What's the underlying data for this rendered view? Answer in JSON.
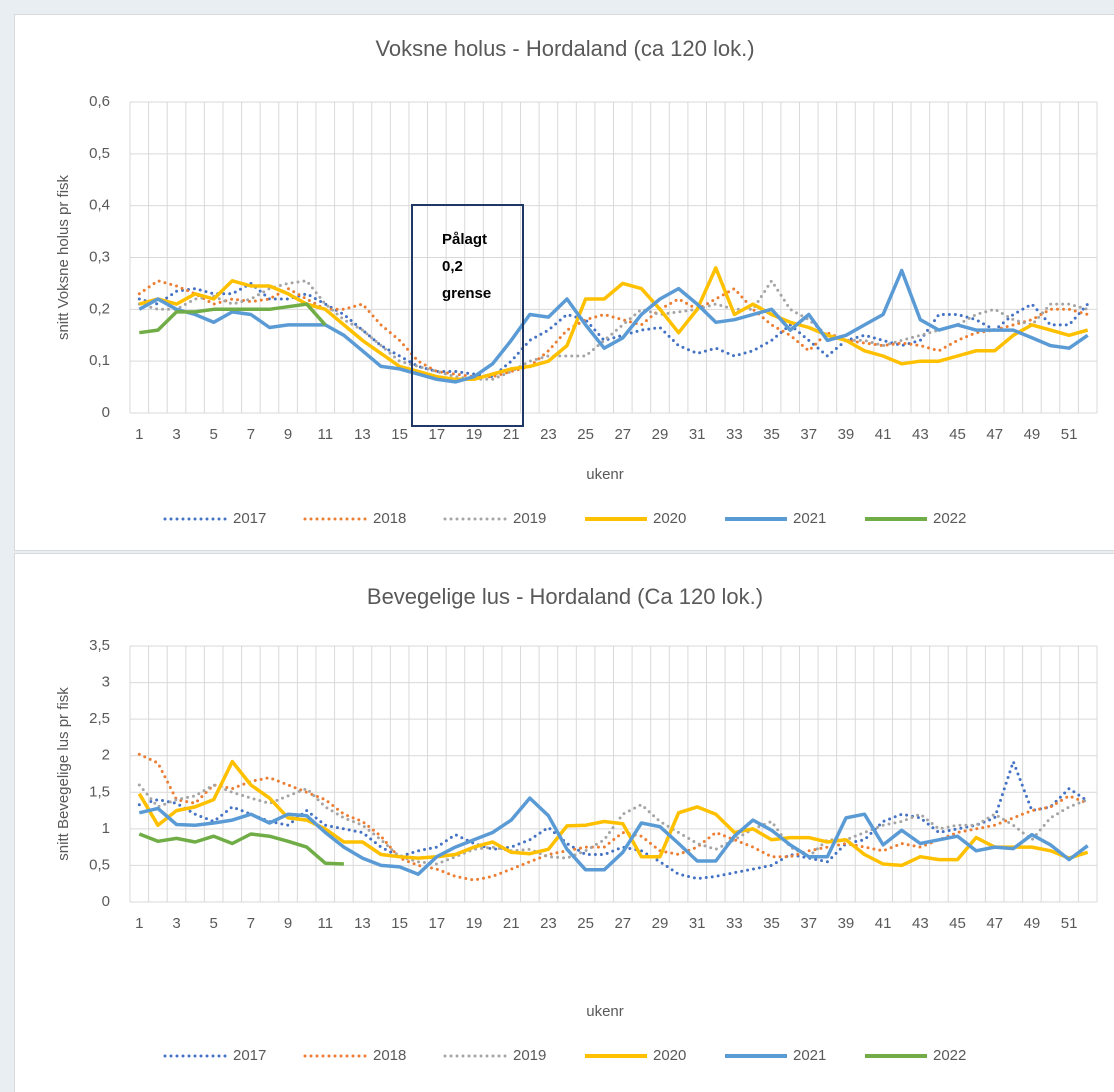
{
  "chart_data": [
    {
      "type": "line",
      "title": "Voksne holus - Hordaland (ca 120 lok.)",
      "x_label": "ukenr",
      "y_label": "snitt Voksne holus pr fisk",
      "categories": [
        1,
        null,
        3,
        null,
        5,
        null,
        7,
        null,
        9,
        null,
        11,
        null,
        13,
        null,
        15,
        null,
        17,
        null,
        19,
        null,
        21,
        null,
        23,
        null,
        25,
        null,
        27,
        null,
        29,
        null,
        31,
        null,
        33,
        null,
        35,
        null,
        37,
        null,
        39,
        null,
        41,
        null,
        43,
        null,
        45,
        null,
        47,
        null,
        49,
        null,
        51,
        null
      ],
      "ylim": [
        0,
        0.6
      ],
      "yticks": [
        0,
        {
          "value": 0.1,
          "label": "0,1"
        },
        {
          "value": 0.2,
          "label": "0,2"
        },
        {
          "value": 0.3,
          "label": "0,3"
        },
        {
          "value": 0.4,
          "label": "0,4"
        },
        {
          "value": 0.5,
          "label": "0,5"
        },
        {
          "value": 0.6,
          "label": "0,6"
        }
      ],
      "grid": true,
      "legend": "bottom",
      "annotation": [
        "Pålagt",
        "0,2",
        "grense"
      ],
      "series": [
        {
          "name": "2017",
          "color": "#4472c4",
          "style": "dotted",
          "values": [
            0.22,
            0.21,
            0.235,
            0.24,
            0.23,
            0.23,
            0.25,
            0.22,
            0.22,
            0.23,
            0.21,
            0.19,
            0.16,
            0.13,
            0.11,
            0.09,
            0.08,
            0.08,
            0.075,
            0.07,
            0.1,
            0.14,
            0.16,
            0.19,
            0.18,
            0.14,
            0.15,
            0.16,
            0.165,
            0.13,
            0.115,
            0.125,
            0.11,
            0.12,
            0.14,
            0.17,
            0.14,
            0.11,
            0.14,
            0.15,
            0.14,
            0.13,
            0.14,
            0.19,
            0.19,
            0.18,
            0.16,
            0.19,
            0.21,
            0.17,
            0.17,
            0.21
          ]
        },
        {
          "name": "2018",
          "color": "#ed7d31",
          "style": "dotted",
          "values": [
            0.23,
            0.255,
            0.245,
            0.23,
            0.21,
            0.22,
            0.215,
            0.22,
            0.24,
            0.22,
            0.2,
            0.2,
            0.21,
            0.17,
            0.14,
            0.1,
            0.08,
            0.075,
            0.07,
            0.07,
            0.08,
            0.09,
            0.12,
            0.16,
            0.18,
            0.19,
            0.18,
            0.17,
            0.2,
            0.22,
            0.2,
            0.22,
            0.24,
            0.2,
            0.17,
            0.15,
            0.12,
            0.155,
            0.14,
            0.135,
            0.13,
            0.135,
            0.13,
            0.12,
            0.14,
            0.155,
            0.16,
            0.17,
            0.18,
            0.2,
            0.2,
            0.19
          ]
        },
        {
          "name": "2019",
          "color": "#a5a5a5",
          "style": "dotted",
          "values": [
            0.21,
            0.2,
            0.2,
            0.22,
            0.225,
            0.21,
            0.22,
            0.24,
            0.25,
            0.255,
            0.21,
            0.18,
            0.16,
            0.13,
            0.1,
            0.09,
            0.08,
            0.07,
            0.065,
            0.065,
            0.08,
            0.1,
            0.11,
            0.11,
            0.11,
            0.14,
            0.17,
            0.2,
            0.19,
            0.195,
            0.2,
            0.21,
            0.2,
            0.2,
            0.255,
            0.2,
            0.18,
            0.15,
            0.14,
            0.14,
            0.13,
            0.14,
            0.15,
            0.16,
            0.17,
            0.19,
            0.2,
            0.18,
            0.17,
            0.21,
            0.21,
            0.2
          ]
        },
        {
          "name": "2020",
          "color": "#ffc000",
          "style": "solid",
          "values": [
            0.21,
            0.22,
            0.21,
            0.23,
            0.22,
            0.255,
            0.245,
            0.245,
            0.23,
            0.21,
            0.2,
            0.17,
            0.14,
            0.115,
            0.09,
            0.08,
            0.07,
            0.065,
            0.065,
            0.075,
            0.085,
            0.09,
            0.1,
            0.13,
            0.22,
            0.22,
            0.25,
            0.24,
            0.2,
            0.155,
            0.2,
            0.28,
            0.19,
            0.21,
            0.19,
            0.175,
            0.165,
            0.15,
            0.14,
            0.12,
            0.11,
            0.095,
            0.1,
            0.1,
            0.11,
            0.12,
            0.12,
            0.15,
            0.17,
            0.16,
            0.15,
            0.16
          ]
        },
        {
          "name": "2021",
          "color": "#5b9bd5",
          "style": "solid",
          "values": [
            0.2,
            0.22,
            0.2,
            0.19,
            0.175,
            0.195,
            0.19,
            0.165,
            0.17,
            0.17,
            0.17,
            0.15,
            0.12,
            0.09,
            0.085,
            0.075,
            0.065,
            0.06,
            0.07,
            0.095,
            0.14,
            0.19,
            0.185,
            0.22,
            0.17,
            0.125,
            0.145,
            0.19,
            0.22,
            0.24,
            0.21,
            0.175,
            0.18,
            0.19,
            0.2,
            0.16,
            0.19,
            0.14,
            0.15,
            0.17,
            0.19,
            0.275,
            0.18,
            0.16,
            0.17,
            0.16,
            0.16,
            0.16,
            0.145,
            0.13,
            0.125,
            0.15
          ]
        },
        {
          "name": "2022",
          "color": "#70ad47",
          "style": "solid",
          "values": [
            0.155,
            0.16,
            0.195,
            0.195,
            0.2,
            0.2,
            0.2,
            0.2,
            0.205,
            0.21,
            0.17,
            null,
            null,
            null,
            null,
            null,
            null,
            null,
            null,
            null,
            null,
            null,
            null,
            null,
            null,
            null,
            null,
            null,
            null,
            null,
            null,
            null,
            null,
            null,
            null,
            null,
            null,
            null,
            null,
            null,
            null,
            null,
            null,
            null,
            null,
            null,
            null,
            null,
            null,
            null,
            null,
            null
          ]
        }
      ]
    },
    {
      "type": "line",
      "title": "Bevegelige lus - Hordaland (Ca 120 lok.)",
      "x_label": "ukenr",
      "y_label": "snitt Bevegelige lus pr fisk",
      "categories": [
        1,
        null,
        3,
        null,
        5,
        null,
        7,
        null,
        9,
        null,
        11,
        null,
        13,
        null,
        15,
        null,
        17,
        null,
        19,
        null,
        21,
        null,
        23,
        null,
        25,
        null,
        27,
        null,
        29,
        null,
        31,
        null,
        33,
        null,
        35,
        null,
        37,
        null,
        39,
        null,
        41,
        null,
        43,
        null,
        45,
        null,
        47,
        null,
        49,
        null,
        51,
        null
      ],
      "ylim": [
        0,
        3.5
      ],
      "yticks": [
        0,
        {
          "value": 0.5,
          "label": "0,5"
        },
        1,
        {
          "value": 1.5,
          "label": "1,5"
        },
        2,
        {
          "value": 2.5,
          "label": "2,5"
        },
        3,
        {
          "value": 3.5,
          "label": "3,5"
        }
      ],
      "grid": true,
      "legend": "bottom",
      "series": [
        {
          "name": "2017",
          "color": "#4472c4",
          "style": "dotted",
          "values": [
            1.33,
            1.4,
            1.35,
            1.2,
            1.1,
            1.3,
            1.2,
            1.1,
            1.05,
            1.25,
            1.05,
            1.0,
            0.95,
            0.75,
            0.62,
            0.7,
            0.75,
            0.92,
            0.8,
            0.72,
            0.75,
            0.85,
            1.02,
            0.8,
            0.65,
            0.65,
            0.75,
            0.7,
            0.55,
            0.38,
            0.32,
            0.35,
            0.4,
            0.45,
            0.5,
            0.65,
            0.6,
            0.55,
            0.8,
            0.85,
            1.1,
            1.2,
            1.15,
            0.95,
            1.0,
            1.05,
            1.15,
            1.92,
            1.25,
            1.3,
            1.55,
            1.38
          ]
        },
        {
          "name": "2018",
          "color": "#ed7d31",
          "style": "dotted",
          "values": [
            2.02,
            1.9,
            1.4,
            1.35,
            1.6,
            1.55,
            1.65,
            1.7,
            1.6,
            1.5,
            1.4,
            1.2,
            1.1,
            0.9,
            0.6,
            0.5,
            0.45,
            0.35,
            0.3,
            0.35,
            0.45,
            0.55,
            0.65,
            0.7,
            0.75,
            0.75,
            0.95,
            0.9,
            0.7,
            0.65,
            0.75,
            0.95,
            0.85,
            0.75,
            0.62,
            0.62,
            0.7,
            0.75,
            0.8,
            0.75,
            0.7,
            0.8,
            0.75,
            0.85,
            0.95,
            1.0,
            1.05,
            1.15,
            1.25,
            1.3,
            1.45,
            1.35
          ]
        },
        {
          "name": "2019",
          "color": "#a5a5a5",
          "style": "dotted",
          "values": [
            1.6,
            1.3,
            1.4,
            1.45,
            1.6,
            1.5,
            1.42,
            1.35,
            1.45,
            1.55,
            1.3,
            1.15,
            1.05,
            0.85,
            0.62,
            0.55,
            0.52,
            0.62,
            0.72,
            0.75,
            0.7,
            0.72,
            0.62,
            0.6,
            0.7,
            0.85,
            1.2,
            1.33,
            1.1,
            0.95,
            0.8,
            0.72,
            0.85,
            1.0,
            1.1,
            0.75,
            0.62,
            0.85,
            0.85,
            0.95,
            1.05,
            1.1,
            1.2,
            1.0,
            1.05,
            1.05,
            1.2,
            1.05,
            0.85,
            1.15,
            1.3,
            1.4
          ]
        },
        {
          "name": "2020",
          "color": "#ffc000",
          "style": "solid",
          "values": [
            1.48,
            1.05,
            1.25,
            1.3,
            1.4,
            1.92,
            1.6,
            1.42,
            1.15,
            1.12,
            1.0,
            0.82,
            0.82,
            0.65,
            0.62,
            0.6,
            0.62,
            0.65,
            0.75,
            0.82,
            0.68,
            0.66,
            0.72,
            1.04,
            1.05,
            1.1,
            1.07,
            0.62,
            0.62,
            1.22,
            1.3,
            1.2,
            0.95,
            1.0,
            0.85,
            0.88,
            0.88,
            0.82,
            0.85,
            0.65,
            0.52,
            0.5,
            0.62,
            0.58,
            0.58,
            0.88,
            0.75,
            0.75,
            0.75,
            0.7,
            0.6,
            0.68
          ]
        },
        {
          "name": "2021",
          "color": "#5b9bd5",
          "style": "solid",
          "values": [
            1.22,
            1.28,
            1.06,
            1.05,
            1.08,
            1.12,
            1.2,
            1.08,
            1.2,
            1.18,
            0.95,
            0.75,
            0.6,
            0.5,
            0.48,
            0.38,
            0.62,
            0.75,
            0.85,
            0.95,
            1.12,
            1.42,
            1.18,
            0.72,
            0.44,
            0.44,
            0.68,
            1.08,
            1.03,
            0.8,
            0.56,
            0.56,
            0.9,
            1.12,
            0.98,
            0.78,
            0.62,
            0.62,
            1.15,
            1.2,
            0.78,
            0.98,
            0.8,
            0.85,
            0.9,
            0.7,
            0.75,
            0.73,
            0.92,
            0.78,
            0.58,
            0.77
          ]
        },
        {
          "name": "2022",
          "color": "#70ad47",
          "style": "solid",
          "values": [
            0.93,
            0.83,
            0.87,
            0.82,
            0.9,
            0.8,
            0.93,
            0.9,
            0.83,
            0.75,
            0.53,
            0.52,
            null,
            null,
            null,
            null,
            null,
            null,
            null,
            null,
            null,
            null,
            null,
            null,
            null,
            null,
            null,
            null,
            null,
            null,
            null,
            null,
            null,
            null,
            null,
            null,
            null,
            null,
            null,
            null,
            null,
            null,
            null,
            null,
            null,
            null,
            null,
            null,
            null,
            null,
            null,
            null
          ]
        }
      ]
    }
  ]
}
